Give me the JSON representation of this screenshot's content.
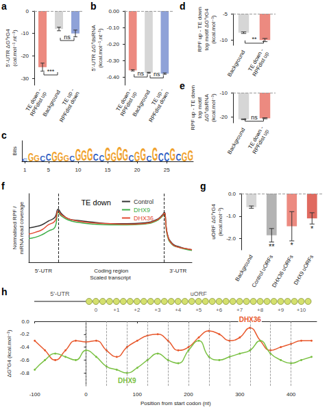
{
  "chart_data": [
    {
      "panel": "a",
      "type": "bar",
      "y_label": "5'-UTR ΔG°rG4 (cal.mol⁻¹.nt⁻¹)",
      "categories": [
        "TE down - RPFdist up",
        "Background",
        "TE up - RPFdist down"
      ],
      "values": [
        -25,
        -8,
        -10
      ],
      "errors": [
        1.8,
        0.8,
        1.5
      ],
      "colors": [
        "#ec8a80",
        "#d6d6d6",
        "#8fa2d8"
      ],
      "ylim": [
        -33,
        0
      ],
      "yticks": [
        0,
        -10,
        -20,
        -30
      ],
      "comparisons": [
        {
          "pair": [
            0,
            1
          ],
          "label": "***"
        },
        {
          "pair": [
            1,
            2
          ],
          "label": "ns"
        }
      ],
      "grid": false
    },
    {
      "panel": "b",
      "type": "bar",
      "y_label": "5'-UTR ΔG°dsRNA (kcal.mol⁻¹.nt⁻¹)",
      "categories": [
        "TE down - RPFdist up",
        "Background",
        "TE up - RPFdist down"
      ],
      "values": [
        -0.36,
        -0.375,
        -0.38
      ],
      "errors": [
        0.004,
        0.003,
        0.004
      ],
      "colors": [
        "#ec8a80",
        "#d6d6d6",
        "#8fa2d8"
      ],
      "ylim": [
        -0.45,
        0
      ],
      "yticks": [
        {
          "value": 0,
          "label": "0.00"
        },
        {
          "value": -0.1,
          "label": "-0.10"
        },
        {
          "value": -0.2,
          "label": "-0.20"
        },
        {
          "value": -0.3,
          "label": "-0.30"
        },
        {
          "value": -0.4,
          "label": "-0.40"
        }
      ],
      "comparisons": [
        {
          "pair": [
            0,
            1
          ],
          "label": "ns"
        },
        {
          "pair": [
            1,
            2
          ],
          "label": "ns"
        }
      ],
      "grid": false
    },
    {
      "panel": "c",
      "type": "logo",
      "y_label": "Bits",
      "x": [
        1,
        2,
        3,
        4,
        5,
        6,
        7,
        8,
        9,
        10,
        11,
        12,
        13,
        14,
        15,
        16,
        17,
        18,
        19,
        20,
        21,
        22,
        23,
        24,
        25,
        26,
        27,
        28,
        29
      ],
      "letters": [
        "C",
        "G",
        "G",
        "C",
        "C",
        "G",
        "G",
        "G",
        "C",
        "G",
        "G",
        "G",
        "C",
        "C",
        "G",
        "G",
        "G",
        "G",
        "C",
        "G",
        "G",
        "C",
        "G",
        "C",
        "C",
        "G",
        "C",
        "G",
        "G"
      ],
      "values": [
        0.3,
        0.8,
        0.6,
        0.5,
        0.7,
        1.0,
        0.9,
        0.6,
        0.5,
        1.2,
        1.1,
        1.3,
        0.7,
        0.6,
        1.4,
        0.9,
        1.5,
        1.2,
        0.6,
        1.0,
        1.3,
        0.5,
        1.4,
        0.8,
        0.9,
        1.3,
        0.7,
        0.9,
        1.1
      ],
      "colors": [
        "#2f5fc4",
        "#f0a22e",
        "#f0a22e",
        "#2f5fc4",
        "#2f5fc4",
        "#f0a22e",
        "#f0a22e",
        "#f0a22e",
        "#2f5fc4",
        "#f0a22e",
        "#f0a22e",
        "#f0a22e",
        "#2f5fc4",
        "#2f5fc4",
        "#f0a22e",
        "#f0a22e",
        "#f0a22e",
        "#f0a22e",
        "#2f5fc4",
        "#f0a22e",
        "#f0a22e",
        "#2f5fc4",
        "#f0a22e",
        "#2f5fc4",
        "#2f5fc4",
        "#f0a22e",
        "#2f5fc4",
        "#f0a22e",
        "#f0a22e"
      ],
      "xlim": [
        0.5,
        29.5
      ],
      "xticks": [
        1,
        5,
        10,
        15,
        20,
        25
      ],
      "ylim": [
        0,
        2
      ],
      "tick_labels": "x",
      "grid": false
    },
    {
      "panel": "d",
      "type": "bar",
      "y_label": "RPF up - TE down top motif ΔG°rG4 (kcal.mol⁻¹)",
      "categories": [
        "Background",
        "TE down - RPFdist up"
      ],
      "values": [
        -8.6,
        -10.0
      ],
      "errors": [
        0.15,
        0.3
      ],
      "colors": [
        "#d6d6d6",
        "#ec8a80"
      ],
      "ylim": [
        -11,
        -5
      ],
      "yticks": [
        -5,
        -10
      ],
      "comparisons": [
        {
          "pair": [
            0,
            1
          ],
          "label": "**"
        }
      ],
      "grid": false
    },
    {
      "panel": "e",
      "type": "bar",
      "y_label": "RPF up - TE down top motif ΔG°dsRNA (kcal.mol⁻¹)",
      "categories": [
        "Background",
        "TE down - RPFdist up"
      ],
      "values": [
        -21.0,
        -20.6
      ],
      "errors": [
        0.15,
        0.2
      ],
      "colors": [
        "#d6d6d6",
        "#ec8a80"
      ],
      "ylim": [
        -22.5,
        -10
      ],
      "yticks": [
        -10,
        -20
      ],
      "comparisons": [
        {
          "pair": [
            0,
            1
          ],
          "label": "ns"
        }
      ],
      "grid": false
    },
    {
      "panel": "f",
      "type": "line",
      "title": "TE down",
      "y_label": "Normalised RPF / mRNA read coverage",
      "x_label": "Scaled transcript",
      "x": [
        0,
        4,
        8,
        12,
        16,
        18,
        20,
        24,
        30,
        40,
        50,
        60,
        70,
        78,
        82,
        83,
        85,
        88,
        92,
        96,
        100
      ],
      "series": [
        {
          "name": "Control",
          "color": "#333333",
          "values": [
            0.55,
            0.57,
            0.6,
            0.66,
            0.72,
            0.85,
            0.78,
            0.7,
            0.67,
            0.64,
            0.62,
            0.62,
            0.63,
            0.68,
            0.76,
            0.8,
            0.45,
            0.3,
            0.25,
            0.22,
            0.2
          ]
        },
        {
          "name": "DHX9",
          "color": "#3fae49",
          "values": [
            0.38,
            0.4,
            0.44,
            0.5,
            0.56,
            0.8,
            0.74,
            0.68,
            0.64,
            0.61,
            0.6,
            0.6,
            0.61,
            0.66,
            0.74,
            0.78,
            0.42,
            0.28,
            0.24,
            0.21,
            0.19
          ]
        },
        {
          "name": "DHX36",
          "color": "#e34a33",
          "values": [
            0.45,
            0.48,
            0.52,
            0.6,
            0.66,
            0.82,
            0.76,
            0.7,
            0.66,
            0.63,
            0.62,
            0.61,
            0.62,
            0.67,
            0.75,
            0.79,
            0.44,
            0.29,
            0.24,
            0.22,
            0.2
          ]
        }
      ],
      "regions": [
        {
          "label": "5'-UTR",
          "start": 0,
          "end": 18
        },
        {
          "label": "Coding region",
          "start": 18,
          "end": 83
        },
        {
          "label": "3'-UTR",
          "start": 83,
          "end": 100
        }
      ],
      "xlim": [
        0,
        100
      ],
      "ylim": [
        0,
        1.1
      ],
      "tick_labels": false,
      "legend": "top",
      "grid": false
    },
    {
      "panel": "g",
      "type": "bar",
      "y_label": "uORF ΔG°rG4 (kcal.mol⁻¹)",
      "categories": [
        "Background",
        "Control uORFs",
        "DHX36 uORFs",
        "DHX9 uORFs"
      ],
      "values": [
        -0.6,
        -1.85,
        -1.45,
        -1.1
      ],
      "errors": [
        0.05,
        0.3,
        0.65,
        0.25
      ],
      "significance": [
        null,
        "**",
        "*",
        "*"
      ],
      "colors": [
        "#d6d6d6",
        "#b3b3b3",
        "#ec8a80",
        "#e06a60"
      ],
      "ylim": [
        -2.5,
        0
      ],
      "yticks": [
        {
          "value": 0,
          "label": "0.0"
        },
        {
          "value": -1,
          "label": "-1.0"
        },
        {
          "value": -2,
          "label": "-2.0"
        }
      ],
      "grid": false
    },
    {
      "panel": "h",
      "type": "line",
      "marker": "circle",
      "y_label": "ΔG°G4 (kcal.mol⁻¹)",
      "x_label": "Position from start codon (nt)",
      "x": [
        -100,
        -80,
        -60,
        -40,
        -20,
        0,
        20,
        40,
        60,
        80,
        100,
        120,
        140,
        160,
        180,
        200,
        220,
        240,
        260,
        280,
        300,
        320,
        340,
        360,
        380,
        400,
        420,
        440
      ],
      "series": [
        {
          "name": "DHX36",
          "color": "#e8582c",
          "values": [
            -0.3,
            -0.45,
            -0.6,
            -0.45,
            -0.3,
            -0.32,
            -0.3,
            -0.45,
            -0.55,
            -0.4,
            -0.3,
            -0.22,
            -0.2,
            -0.3,
            -0.45,
            -0.4,
            -0.25,
            -0.15,
            -0.2,
            -0.3,
            -0.25,
            -0.1,
            -0.3,
            -0.45,
            -0.4,
            -0.35,
            -0.3,
            -0.3
          ]
        },
        {
          "name": "DHX9",
          "color": "#7ac143",
          "values": [
            -0.75,
            -0.6,
            -0.5,
            -0.55,
            -0.6,
            -0.45,
            -0.55,
            -0.7,
            -0.75,
            -0.8,
            -0.72,
            -0.6,
            -0.5,
            -0.6,
            -0.65,
            -0.45,
            -0.3,
            -0.55,
            -0.6,
            -0.55,
            -0.5,
            -0.45,
            -0.3,
            -0.5,
            -0.6,
            -0.65,
            -0.6,
            -0.55
          ]
        }
      ],
      "xlim": [
        -100,
        450
      ],
      "xticks": [
        -100,
        0,
        100,
        200,
        300,
        400
      ],
      "ylim": [
        -1,
        0
      ],
      "yticks": [
        -0.8,
        -0.6,
        -0.4,
        -0.2,
        {
          "value": 0,
          "label": "0.0"
        }
      ],
      "diagram": {
        "utr_label": "5'-UTR",
        "orf_label": "uORF",
        "codons": [
          {
            "label": "0",
            "x": 0
          },
          {
            "label": "+1",
            "x": 40
          },
          {
            "label": "+2",
            "x": 80
          },
          {
            "label": "+3",
            "x": 120
          },
          {
            "label": "+4",
            "x": 160
          },
          {
            "label": "+5",
            "x": 200
          },
          {
            "label": "+6",
            "x": 240
          },
          {
            "label": "+7",
            "x": 280
          },
          {
            "label": "+8",
            "x": 320
          },
          {
            "label": "+9",
            "x": 360
          },
          {
            "label": "+10",
            "x": 400
          }
        ]
      },
      "grid": false
    }
  ]
}
